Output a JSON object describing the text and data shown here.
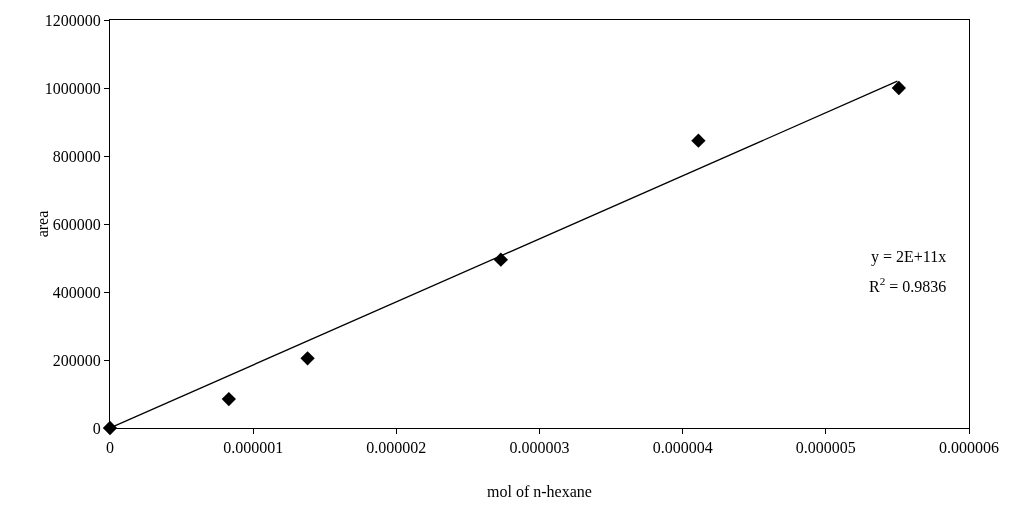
{
  "chart_data": {
    "type": "scatter",
    "xlabel": "mol of n-hexane",
    "ylabel": "area",
    "marker": "diamond",
    "grid": false,
    "x": [
      0,
      8.3e-07,
      1.38e-06,
      2.73e-06,
      4.11e-06,
      5.51e-06
    ],
    "series": [
      {
        "color": "#000000",
        "values": [
          0,
          85000,
          205000,
          495000,
          845000,
          1000000
        ]
      },
      {
        "type": "line",
        "color": "#000000",
        "marker": "none",
        "x": [
          0,
          5.5e-06
        ],
        "values": [
          0,
          1020000
        ]
      }
    ],
    "xlim": [
      0,
      6e-06
    ],
    "xticks": [
      0,
      {
        "value": 1e-06,
        "label": "0.000001"
      },
      {
        "value": 2e-06,
        "label": "0.000002"
      },
      {
        "value": 3e-06,
        "label": "0.000003"
      },
      {
        "value": 4e-06,
        "label": "0.000004"
      },
      {
        "value": 5e-06,
        "label": "0.000005"
      },
      {
        "value": 6e-06,
        "label": "0.000006"
      }
    ],
    "ylim": [
      0,
      1200000
    ],
    "yticks": [
      0,
      200000,
      400000,
      600000,
      800000,
      1000000,
      1200000
    ],
    "annotations": [
      "y = 2E+11x",
      "R$^{2}$ = 0.9836"
    ]
  }
}
